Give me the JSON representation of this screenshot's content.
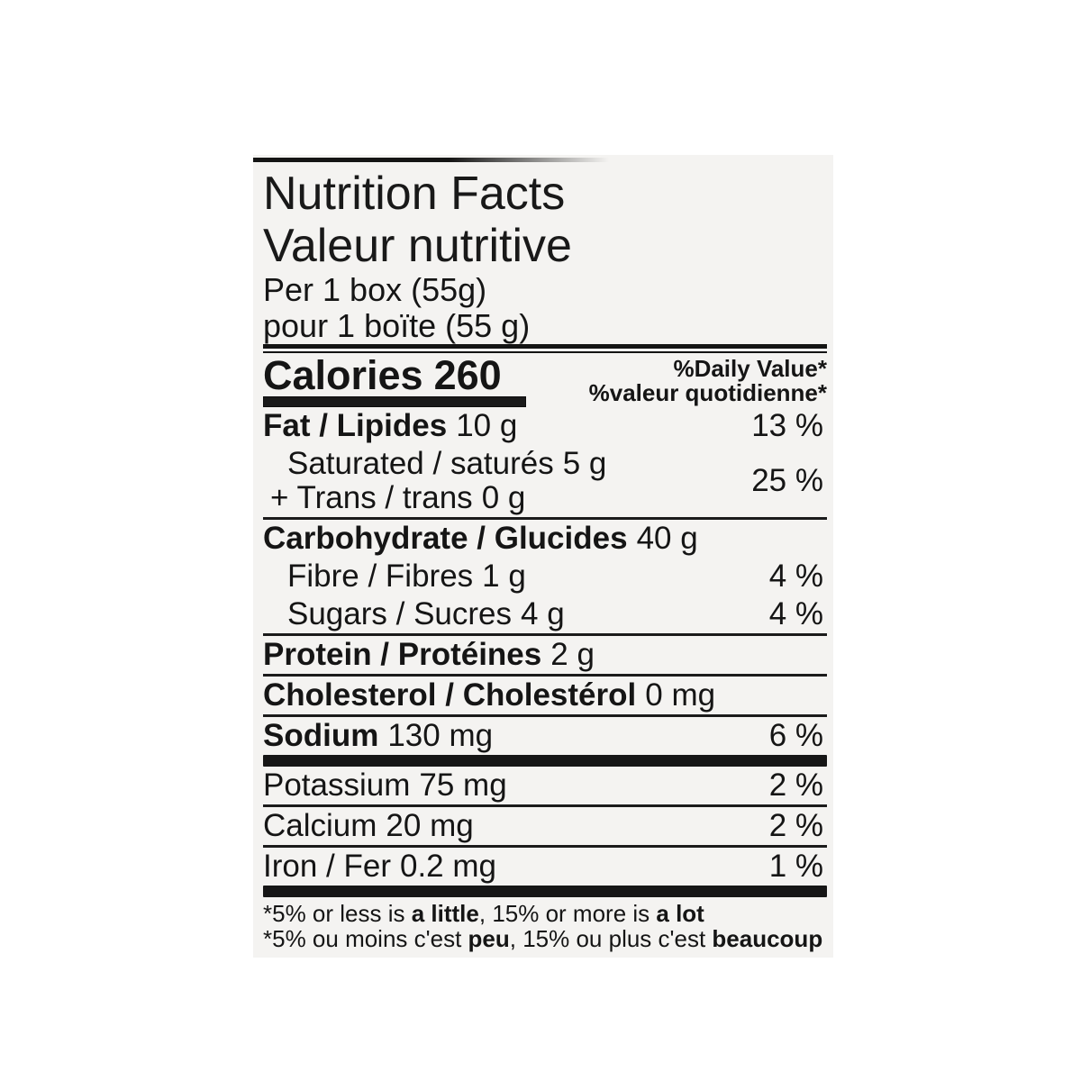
{
  "page": {
    "background": "#ffffff"
  },
  "label": {
    "background": "#f4f3f1",
    "text_color": "#151515",
    "bar_color": "#161616",
    "title_en": "Nutrition Facts",
    "title_fr": "Valeur nutritive",
    "serving_en": "Per 1 box (55g)",
    "serving_fr": "pour 1 boïte (55 g)",
    "calories_label": "Calories",
    "calories_value": "260",
    "daily_value_en": "%Daily Value*",
    "daily_value_fr": "%valeur quotidienne*",
    "rows": {
      "fat": {
        "name": "Fat / Lipides",
        "amount": "10 g",
        "percent": "13 %"
      },
      "saturated": {
        "name": "Saturated / saturés",
        "amount": "5 g"
      },
      "trans": {
        "name": "+ Trans / trans",
        "amount": "0 g"
      },
      "sat_trans_percent": "25 %",
      "carbohydrate": {
        "name": "Carbohydrate / Glucides",
        "amount": "40 g"
      },
      "fibre": {
        "name": "Fibre / Fibres",
        "amount": "1 g",
        "percent": "4 %"
      },
      "sugars": {
        "name": "Sugars / Sucres",
        "amount": "4 g",
        "percent": "4 %"
      },
      "protein": {
        "name": "Protein / Protéines",
        "amount": "2 g"
      },
      "cholesterol": {
        "name": "Cholesterol / Cholestérol",
        "amount": "0 mg"
      },
      "sodium": {
        "name": "Sodium",
        "amount": "130 mg",
        "percent": "6 %"
      },
      "potassium": {
        "name": "Potassium",
        "amount": "75 mg",
        "percent": "2 %"
      },
      "calcium": {
        "name": "Calcium",
        "amount": "20 mg",
        "percent": "2 %"
      },
      "iron": {
        "name": "Iron / Fer",
        "amount": "0.2 mg",
        "percent": "1 %"
      }
    },
    "footnote_en": {
      "prefix": "*5% or less is ",
      "bold1": "a little",
      "middle": ", 15% or more is ",
      "bold2": "a lot"
    },
    "footnote_fr": {
      "prefix": "*5% ou moins c'est ",
      "bold1": "peu",
      "middle": ", 15% ou plus c'est ",
      "bold2": "beaucoup"
    }
  }
}
